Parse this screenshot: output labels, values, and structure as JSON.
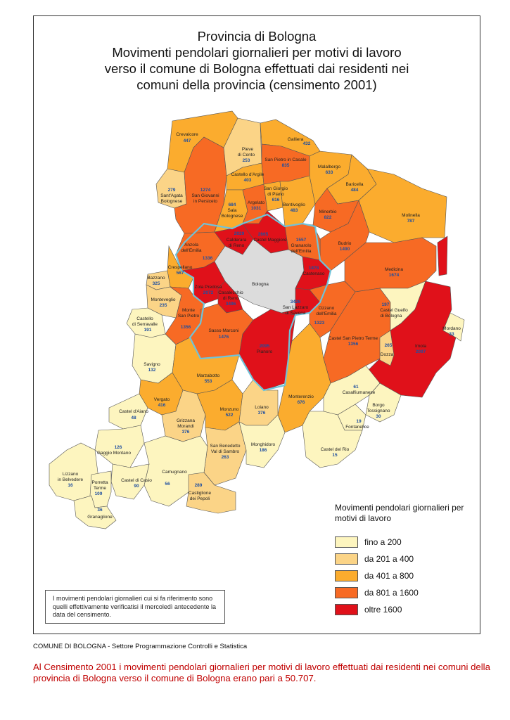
{
  "title": {
    "line1": "Provincia di Bologna",
    "line2": "Movimenti pendolari giornalieri per motivi di lavoro",
    "line3": "verso il comune di Bologna effettuati dai residenti nei",
    "line4": "comuni della provincia (censimento 2001)"
  },
  "colors": {
    "fino_200": "#fdf5bf",
    "da_201_400": "#fbd487",
    "da_401_800": "#fbac2e",
    "da_801_1600": "#f76a24",
    "oltre_1600": "#e0111a",
    "bologna": "#dcdcdc",
    "border_highlight": "#6fc3da"
  },
  "legend": {
    "title": "Movimenti pendolari giornalieri per motivi di lavoro",
    "items": [
      {
        "label": "fino a 200",
        "color": "#fdf5bf"
      },
      {
        "label": "da 201 a 400",
        "color": "#fbd487"
      },
      {
        "label": "da 401 a 800",
        "color": "#fbac2e"
      },
      {
        "label": "da 801 a 1600",
        "color": "#f76a24"
      },
      {
        "label": "oltre 1600",
        "color": "#e0111a"
      }
    ]
  },
  "note": "I movimenti pendolari giornalieri cui si fa riferimento sono quelli effettivamente verificatisi il mercoledì antecedente la data del censimento.",
  "footer": "COMUNE DI BOLOGNA - Settore Programmazione Controlli e Statistica",
  "caption": "Al Censimento 2001 i movimenti pendolari giornalieri per motivi di lavoro effettuati dai residenti nei comuni della provincia di Bologna verso il comune di Bologna erano pari a 50.707.",
  "municipalities": [
    {
      "name": "Crevalcore",
      "value": "447"
    },
    {
      "name": "Sant'Agata Bolognese",
      "value": "279"
    },
    {
      "name": "San Giovanni in Persiceto",
      "value": "1274"
    },
    {
      "name": "Pieve di Cento",
      "value": "253"
    },
    {
      "name": "Castello d'Argile",
      "value": "403"
    },
    {
      "name": "Galliera",
      "value": "432"
    },
    {
      "name": "San Pietro in Casale",
      "value": "835"
    },
    {
      "name": "Malalbergo",
      "value": "633"
    },
    {
      "name": "San Giorgio di Piano",
      "value": "616"
    },
    {
      "name": "Argelato",
      "value": "1031"
    },
    {
      "name": "Sala Bolognese",
      "value": "684"
    },
    {
      "name": "Bentivoglio",
      "value": "483"
    },
    {
      "name": "Baricella",
      "value": "484"
    },
    {
      "name": "Minerbio",
      "value": "822"
    },
    {
      "name": "Molinella",
      "value": "787"
    },
    {
      "name": "Calderara di Reno",
      "value": "2029"
    },
    {
      "name": "Castel Maggiore",
      "value": "2665"
    },
    {
      "name": "Granarolo dell'Emilia",
      "value": "1557"
    },
    {
      "name": "Anzola dell'Emilia",
      "value": "1336"
    },
    {
      "name": "Budrio",
      "value": "1490"
    },
    {
      "name": "Bologna",
      "value": ""
    },
    {
      "name": "Castenaso",
      "value": "1878"
    },
    {
      "name": "Medicina",
      "value": "1674"
    },
    {
      "name": "Crespellano",
      "value": "567"
    },
    {
      "name": "Bazzano",
      "value": "325"
    },
    {
      "name": "Zola Predosa",
      "value": "2072"
    },
    {
      "name": "Casalecchio di Reno",
      "value": "3496"
    },
    {
      "name": "San Lazzaro di Savena",
      "value": "3426"
    },
    {
      "name": "Monteveglio",
      "value": "235"
    },
    {
      "name": "Monte San Pietro",
      "value": "1356"
    },
    {
      "name": "Ozzano dell'Emilia",
      "value": "1323"
    },
    {
      "name": "Castel Guelfo di Bologna",
      "value": "197"
    },
    {
      "name": "Castello di Serravalle",
      "value": "191"
    },
    {
      "name": "Sasso Marconi",
      "value": "1476"
    },
    {
      "name": "Castel San Pietro Terme",
      "value": "1356"
    },
    {
      "name": "Mordano",
      "value": "33"
    },
    {
      "name": "Pianoro",
      "value": "2095"
    },
    {
      "name": "Dozza",
      "value": "265"
    },
    {
      "name": "Imola",
      "value": "2097"
    },
    {
      "name": "Savigno",
      "value": "132"
    },
    {
      "name": "Marzabotto",
      "value": "553"
    },
    {
      "name": "Casalfiumanese",
      "value": "61"
    },
    {
      "name": "Vergato",
      "value": "416"
    },
    {
      "name": "Monterenzio",
      "value": "676"
    },
    {
      "name": "Borgo Tossignano",
      "value": "30"
    },
    {
      "name": "Castel d'Aiano",
      "value": "48"
    },
    {
      "name": "Monzuno",
      "value": "522"
    },
    {
      "name": "Loiano",
      "value": "376"
    },
    {
      "name": "Fontanelice",
      "value": "19"
    },
    {
      "name": "Grizzana Morandi",
      "value": "376"
    },
    {
      "name": "Gaggio Montano",
      "value": "126"
    },
    {
      "name": "San Benedetto Val di Sambro",
      "value": "263"
    },
    {
      "name": "Monghidoro",
      "value": "186"
    },
    {
      "name": "Castel del Rio",
      "value": "15"
    },
    {
      "name": "Camugnano",
      "value": "56"
    },
    {
      "name": "Lizzano in Belvedere",
      "value": "16"
    },
    {
      "name": "Castel di Casio",
      "value": "90"
    },
    {
      "name": "Porretta Terme",
      "value": "109"
    },
    {
      "name": "Castiglione dei Pepoli",
      "value": "289"
    },
    {
      "name": "Granaglione",
      "value": "36"
    }
  ]
}
